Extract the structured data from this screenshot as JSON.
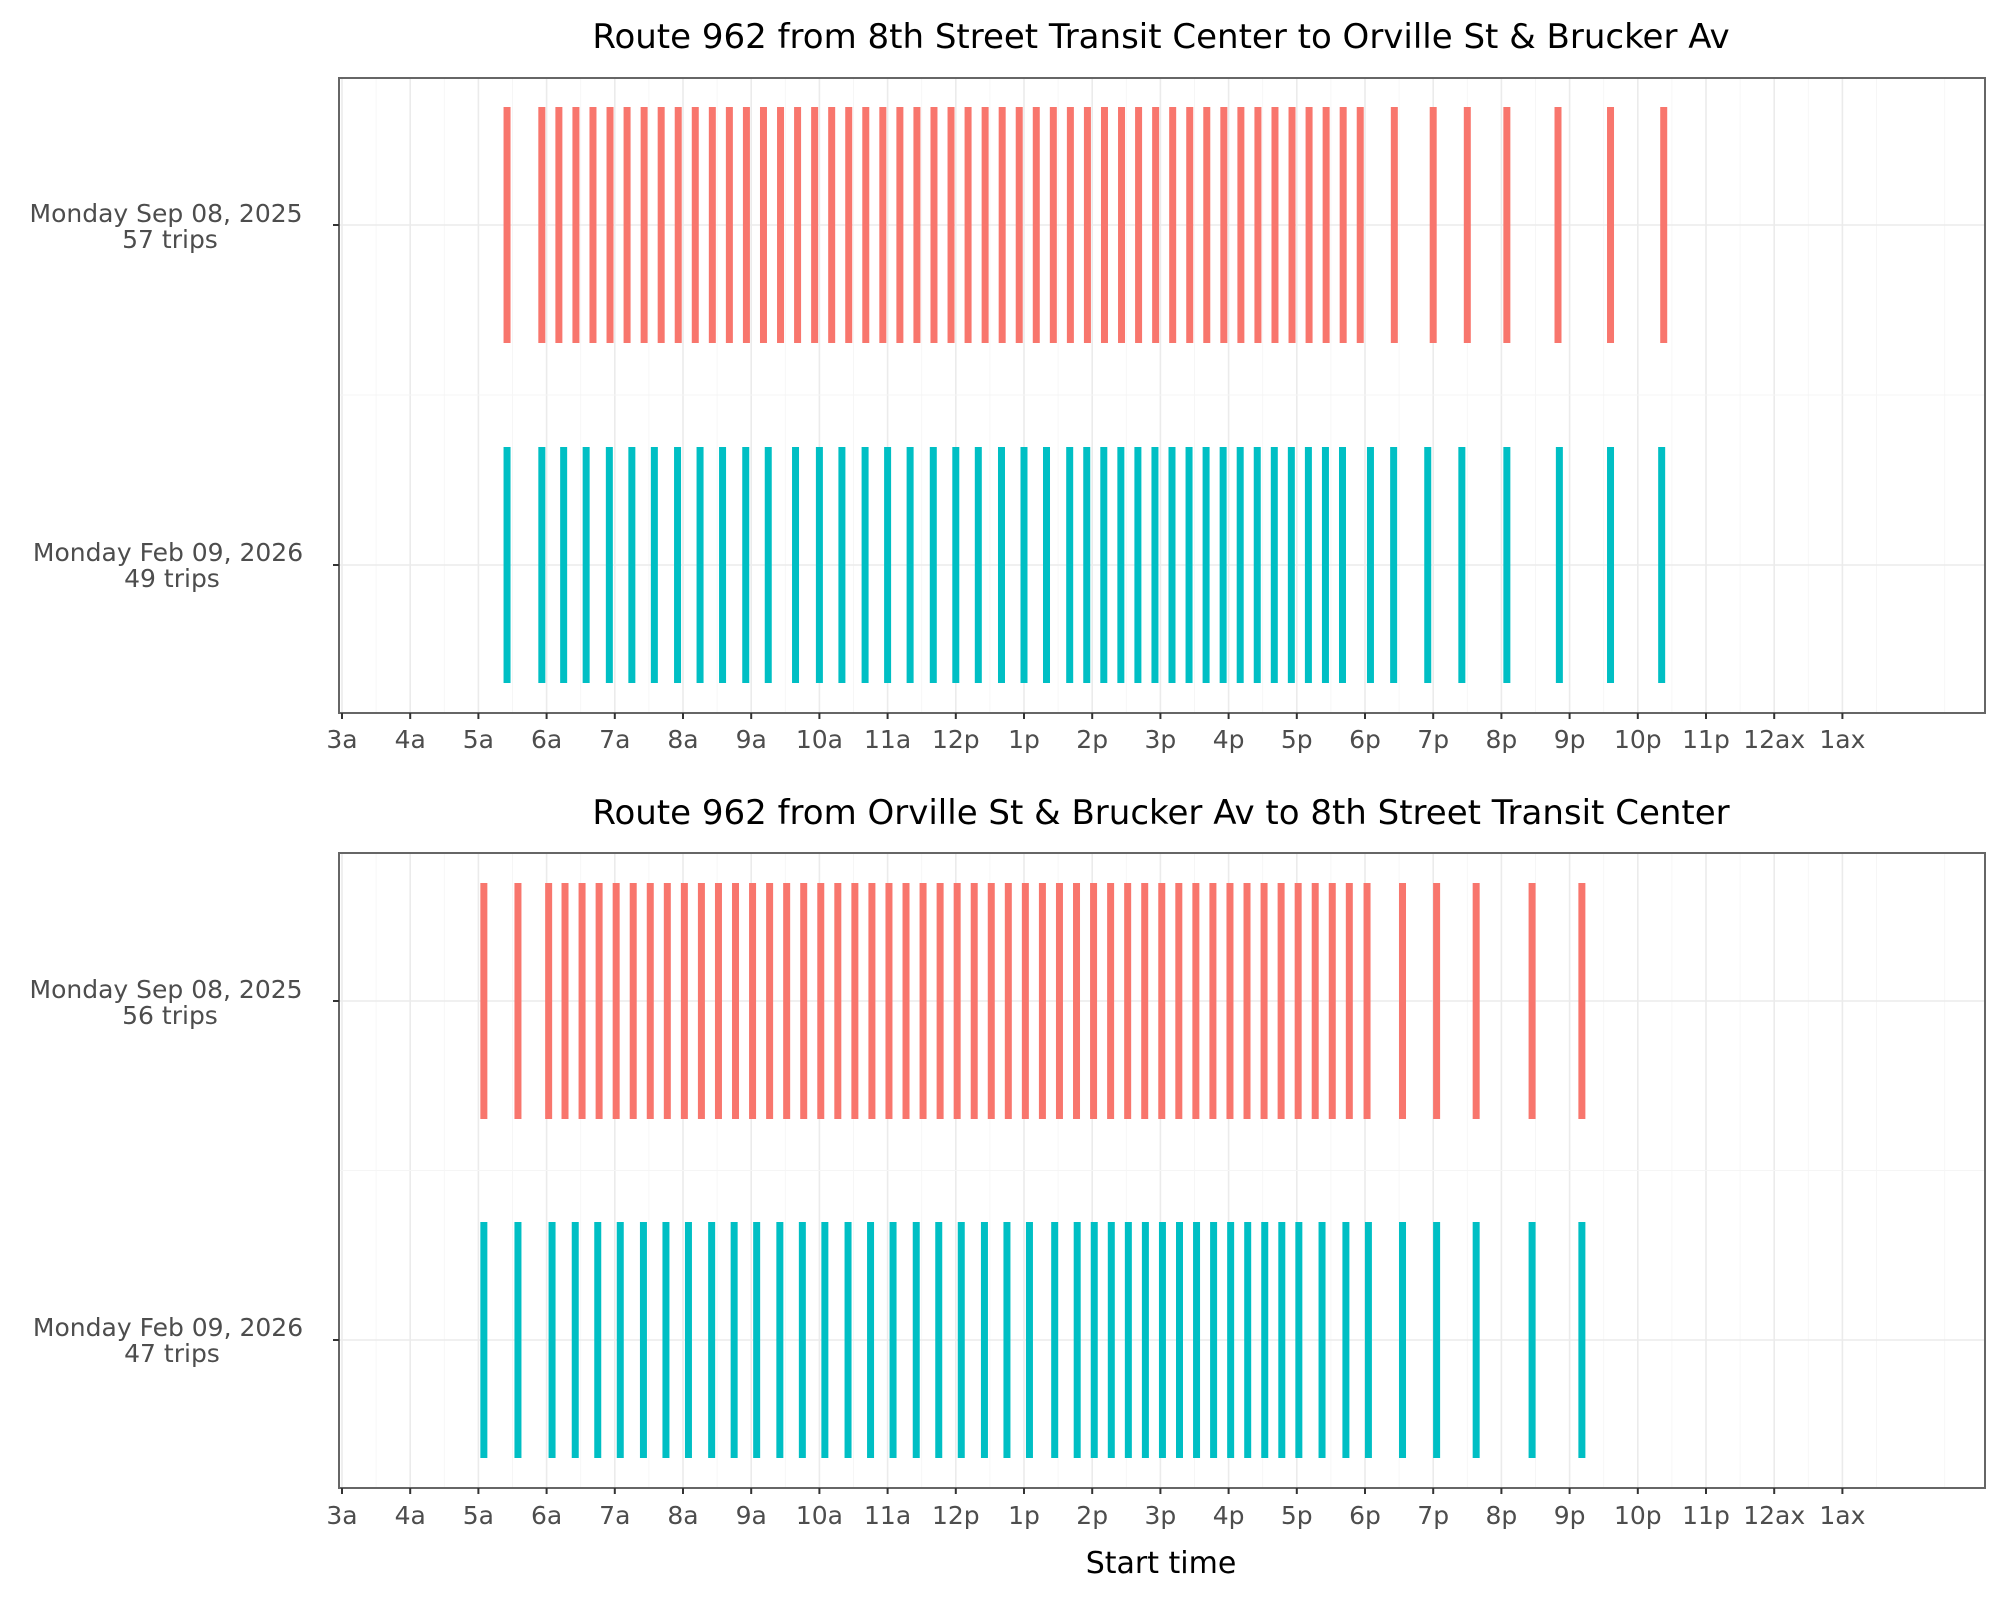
{
  "chart_data": [
    {
      "type": "timeline",
      "title": "Route 962 from 8th Street Transit Center to Orville St & Brucker Av",
      "xlabel": "",
      "x_ticks": [
        "3a",
        "4a",
        "5a",
        "6a",
        "7a",
        "8a",
        "9a",
        "10a",
        "11a",
        "12p",
        "1p",
        "2p",
        "3p",
        "4p",
        "5p",
        "6p",
        "7p",
        "8p",
        "9p",
        "10p",
        "11p",
        "12ax",
        "1ax"
      ],
      "x_tick_hours": [
        3,
        4,
        5,
        6,
        7,
        8,
        9,
        10,
        11,
        12,
        13,
        14,
        15,
        16,
        17,
        18,
        19,
        20,
        21,
        22,
        23,
        24,
        25
      ],
      "xlim_hours": [
        3,
        27.3
      ],
      "series": [
        {
          "name": "Monday Sep 08, 2025",
          "label_line1": "Monday Sep 08, 2025",
          "label_line2": "57 trips",
          "color": "#f8766d",
          "start_times_hours": [
            5.42,
            5.93,
            6.18,
            6.43,
            6.68,
            6.93,
            7.18,
            7.43,
            7.68,
            7.93,
            8.18,
            8.43,
            8.68,
            8.93,
            9.18,
            9.43,
            9.68,
            9.93,
            10.18,
            10.43,
            10.68,
            10.93,
            11.18,
            11.43,
            11.68,
            11.93,
            12.18,
            12.43,
            12.68,
            12.93,
            13.18,
            13.43,
            13.68,
            13.93,
            14.18,
            14.43,
            14.68,
            14.93,
            15.18,
            15.43,
            15.68,
            15.93,
            16.18,
            16.43,
            16.68,
            16.93,
            17.18,
            17.43,
            17.68,
            17.93,
            18.43,
            19.0,
            19.5,
            20.08,
            20.83,
            21.6,
            22.38
          ]
        },
        {
          "name": "Monday Feb 09, 2026",
          "label_line1": "Monday Feb 09, 2026",
          "label_line2": "49 trips",
          "color": "#00bfc4",
          "start_times_hours": [
            5.42,
            5.93,
            6.25,
            6.58,
            6.92,
            7.25,
            7.58,
            7.92,
            8.25,
            8.58,
            8.92,
            9.25,
            9.65,
            10.0,
            10.33,
            10.67,
            11.0,
            11.33,
            11.67,
            12.0,
            12.33,
            12.67,
            13.0,
            13.33,
            13.67,
            13.92,
            14.17,
            14.42,
            14.67,
            14.92,
            15.17,
            15.42,
            15.67,
            15.92,
            16.17,
            16.42,
            16.67,
            16.92,
            17.17,
            17.42,
            17.67,
            18.08,
            18.42,
            18.92,
            19.42,
            20.08,
            20.85,
            21.6,
            22.35
          ]
        }
      ]
    },
    {
      "type": "timeline",
      "title": "Route 962 from Orville St & Brucker Av to 8th Street Transit Center",
      "xlabel": "Start time",
      "x_ticks": [
        "3a",
        "4a",
        "5a",
        "6a",
        "7a",
        "8a",
        "9a",
        "10a",
        "11a",
        "12p",
        "1p",
        "2p",
        "3p",
        "4p",
        "5p",
        "6p",
        "7p",
        "8p",
        "9p",
        "10p",
        "11p",
        "12ax",
        "1ax"
      ],
      "x_tick_hours": [
        3,
        4,
        5,
        6,
        7,
        8,
        9,
        10,
        11,
        12,
        13,
        14,
        15,
        16,
        17,
        18,
        19,
        20,
        21,
        22,
        23,
        24,
        25
      ],
      "xlim_hours": [
        3,
        27.3
      ],
      "series": [
        {
          "name": "Monday Sep 08, 2025",
          "label_line1": "Monday Sep 08, 2025",
          "label_line2": "56 trips",
          "color": "#f8766d",
          "start_times_hours": [
            5.08,
            5.58,
            6.03,
            6.27,
            6.52,
            6.77,
            7.02,
            7.27,
            7.52,
            7.77,
            8.02,
            8.27,
            8.52,
            8.77,
            9.02,
            9.27,
            9.52,
            9.77,
            10.02,
            10.27,
            10.52,
            10.77,
            11.02,
            11.27,
            11.52,
            11.77,
            12.02,
            12.27,
            12.52,
            12.77,
            13.02,
            13.27,
            13.52,
            13.77,
            14.02,
            14.27,
            14.52,
            14.77,
            15.02,
            15.27,
            15.52,
            15.77,
            16.02,
            16.27,
            16.52,
            16.77,
            17.02,
            17.27,
            17.52,
            17.77,
            18.03,
            18.55,
            19.05,
            19.63,
            20.45,
            21.18
          ]
        },
        {
          "name": "Monday Feb 09, 2026",
          "label_line1": "Monday Feb 09, 2026",
          "label_line2": "47 trips",
          "color": "#00bfc4",
          "start_times_hours": [
            5.08,
            5.58,
            6.08,
            6.42,
            6.75,
            7.08,
            7.42,
            7.75,
            8.08,
            8.42,
            8.75,
            9.08,
            9.42,
            9.75,
            10.08,
            10.42,
            10.75,
            11.08,
            11.42,
            11.75,
            12.08,
            12.42,
            12.75,
            13.08,
            13.45,
            13.78,
            14.03,
            14.28,
            14.53,
            14.78,
            15.03,
            15.28,
            15.53,
            15.78,
            16.03,
            16.28,
            16.53,
            16.78,
            17.03,
            17.37,
            17.72,
            18.05,
            18.55,
            19.05,
            19.63,
            20.45,
            21.18
          ]
        }
      ]
    }
  ]
}
